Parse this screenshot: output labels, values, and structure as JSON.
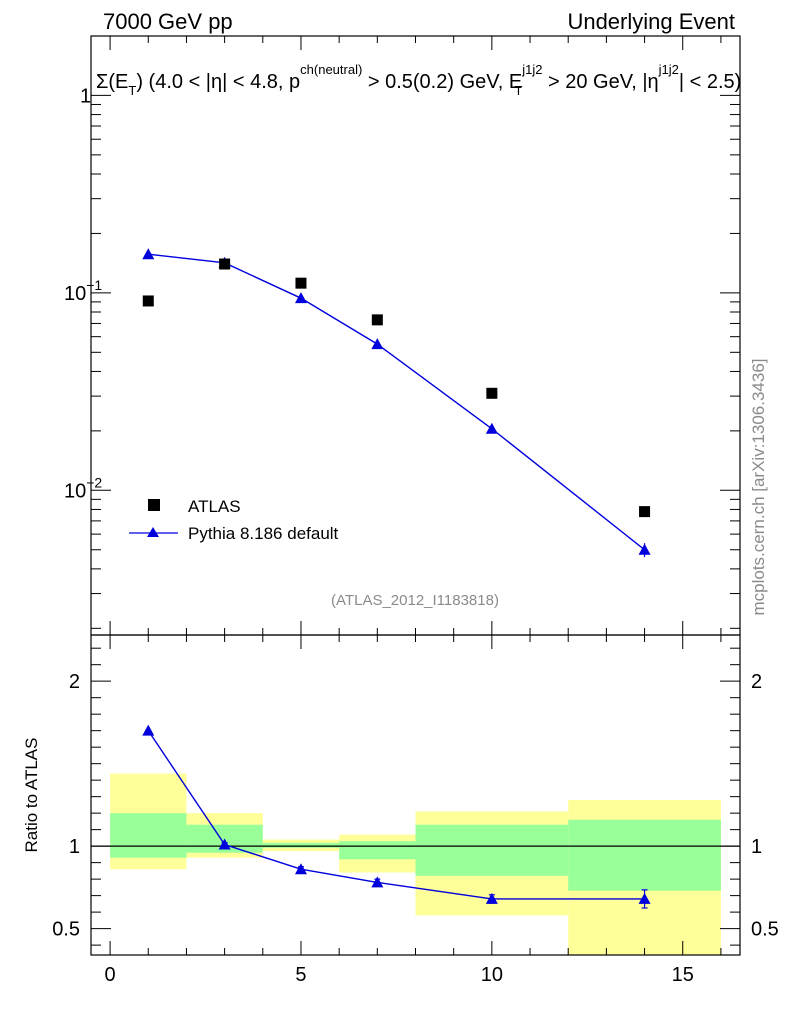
{
  "header": {
    "left": "7000 GeV pp",
    "right": "Underlying Event"
  },
  "observable": {
    "sigma": "Σ(E",
    "sub_t": "T",
    "part1": ") (4.0 < |η| < 4.8, p",
    "sup_ch": "ch(neutral)",
    "part2": " > 0.5(0.2) GeV, E",
    "sup_j": "j1j2",
    "sub_t2": "T",
    "part3": " > 20 GeV, |η",
    "sup_j2": "j1j2",
    "part4": "| < 2.5)"
  },
  "watermark": "mcplots.cern.ch [arXiv:1306.3436]",
  "analysis_id": "(ATLAS_2012_I1183818)",
  "ratio_ylabel": "Ratio to ATLAS",
  "legend": {
    "data_label": "ATLAS",
    "mc_label": "Pythia 8.186 default"
  },
  "colors": {
    "mc": "#0000dd",
    "data": "#000000",
    "band_inner": "#99ff99",
    "band_outer": "#ffff99"
  },
  "chart_data": [
    {
      "type": "scatter",
      "panel": "main",
      "yscale": "log",
      "xlim": [
        -0.5,
        16.5
      ],
      "ylim": [
        0.00185,
        2.0
      ],
      "yticks": [
        0.01,
        0.1,
        1
      ],
      "ytick_labels": [
        {
          "base": "10",
          "exp": "−2"
        },
        {
          "base": "10",
          "exp": "−1"
        },
        {
          "base": "1",
          "exp": ""
        }
      ],
      "series": [
        {
          "name": "ATLAS",
          "x": [
            1,
            3,
            5,
            7,
            10,
            14
          ],
          "y": [
            0.091,
            0.14,
            0.112,
            0.073,
            0.031,
            0.0078
          ]
        },
        {
          "name": "Pythia 8.186 default",
          "x": [
            1,
            3,
            5,
            7,
            10,
            14
          ],
          "y": [
            0.157,
            0.142,
            0.094,
            0.055,
            0.0205,
            0.005
          ],
          "yerr": [
            0,
            0,
            0,
            0,
            0,
            0.0004
          ]
        }
      ]
    },
    {
      "type": "line",
      "panel": "ratio",
      "xlim": [
        -0.5,
        16.5
      ],
      "ylim": [
        0.34,
        2.28
      ],
      "xticks": [
        0,
        5,
        10,
        15
      ],
      "yticks": [
        0.5,
        1,
        2
      ],
      "ytick_labels": [
        "0.5",
        "1",
        "2"
      ],
      "bands": [
        {
          "x0": 0,
          "x1": 2,
          "inner": [
            0.93,
            1.2
          ],
          "outer": [
            0.86,
            1.44
          ]
        },
        {
          "x0": 2,
          "x1": 4,
          "inner": [
            0.96,
            1.13
          ],
          "outer": [
            0.93,
            1.2
          ]
        },
        {
          "x0": 4,
          "x1": 6,
          "inner": [
            0.99,
            1.02
          ],
          "outer": [
            0.97,
            1.04
          ]
        },
        {
          "x0": 6,
          "x1": 8,
          "inner": [
            0.92,
            1.03
          ],
          "outer": [
            0.84,
            1.07
          ]
        },
        {
          "x0": 8,
          "x1": 12,
          "inner": [
            0.82,
            1.13
          ],
          "outer": [
            0.58,
            1.21
          ]
        },
        {
          "x0": 12,
          "x1": 16,
          "inner": [
            0.73,
            1.16
          ],
          "outer": [
            0.34,
            1.28
          ]
        }
      ],
      "series": [
        {
          "name": "Pythia 8.186 default",
          "x": [
            1,
            3,
            5,
            7,
            10,
            14
          ],
          "y": [
            1.7,
            1.01,
            0.86,
            0.78,
            0.68,
            0.68
          ],
          "yerr": [
            0,
            0.01,
            0.015,
            0.02,
            0.025,
            0.055
          ]
        }
      ]
    }
  ]
}
